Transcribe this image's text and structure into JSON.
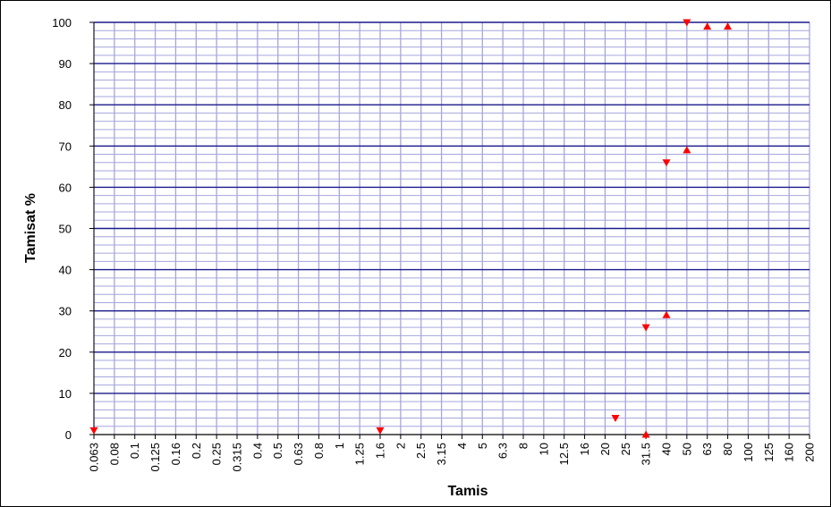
{
  "chart_data": {
    "type": "scatter",
    "title": "",
    "xlabel": "Tamis",
    "ylabel": "Tamisat %",
    "x_scale": "categorical (log-spaced sieve sizes)",
    "ylim": [
      0,
      100
    ],
    "y_ticks": [
      "0",
      "10",
      "20",
      "30",
      "40",
      "50",
      "60",
      "70",
      "80",
      "90",
      "100"
    ],
    "x_tick_labels": [
      "0.063",
      "0.08",
      "0.1",
      "0.125",
      "0.16",
      "0.2",
      "0.25",
      "0.315",
      "0.4",
      "0.5",
      "0.63",
      "0.8",
      "1",
      "1.25",
      "1.6",
      "2",
      "2.5",
      "3.15",
      "4",
      "5",
      "6.3",
      "8",
      "10",
      "12.5",
      "16",
      "20",
      "25",
      "31.5",
      "40",
      "50",
      "63",
      "80",
      "100",
      "125",
      "160",
      "200"
    ],
    "grid": true,
    "series": [
      {
        "marker": "triangle-down",
        "color": "#ff0000",
        "points": [
          {
            "x": "0.063",
            "y": 1
          },
          {
            "x": "1.6",
            "y": 1
          },
          {
            "x": "22.4",
            "y": 4
          },
          {
            "x": "31.5",
            "y": 26
          },
          {
            "x": "40",
            "y": 66
          },
          {
            "x": "50",
            "y": 100
          }
        ]
      },
      {
        "marker": "triangle-up",
        "color": "#ff0000",
        "points": [
          {
            "x": "31.5",
            "y": 0
          },
          {
            "x": "40",
            "y": 29
          },
          {
            "x": "50",
            "y": 69
          },
          {
            "x": "63",
            "y": 99
          },
          {
            "x": "80",
            "y": 99
          }
        ]
      }
    ]
  }
}
